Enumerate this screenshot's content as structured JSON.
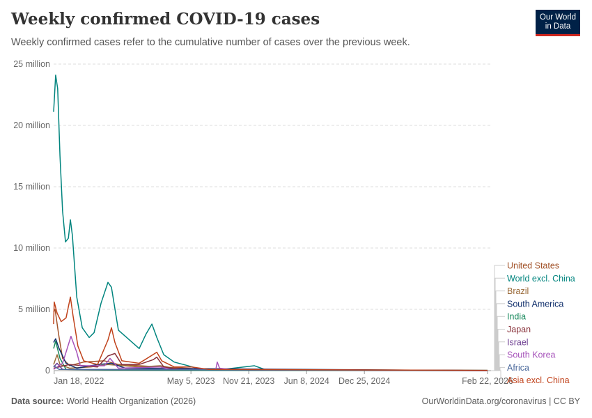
{
  "header": {
    "title": "Weekly confirmed COVID-19 cases",
    "subtitle": "Weekly confirmed cases refer to the cumulative number of cases over the previous week.",
    "logo": "Our World in Data"
  },
  "footer": {
    "source_label": "Data source:",
    "source": "World Health Organization (2026)",
    "link": "OurWorldinData.org/coronavirus | CC BY"
  },
  "chart_data": {
    "type": "line",
    "title": "Weekly confirmed COVID-19 cases",
    "x_unit": "days since Jan 11, 2022",
    "xlim": [
      0,
      1501
    ],
    "ylim": [
      0,
      25
    ],
    "y_unit": "million",
    "yticks": [
      {
        "v": 0,
        "label": "0"
      },
      {
        "v": 5,
        "label": "5 million"
      },
      {
        "v": 10,
        "label": "10 million"
      },
      {
        "v": 15,
        "label": "15 million"
      },
      {
        "v": 20,
        "label": "20 million"
      },
      {
        "v": 25,
        "label": "25 million"
      }
    ],
    "xticks": [
      {
        "v": 2,
        "label": "Jan 18, 2022"
      },
      {
        "v": 475,
        "label": "May 5, 2023"
      },
      {
        "v": 675,
        "label": "Nov 21, 2023"
      },
      {
        "v": 875,
        "label": "Jun 8, 2024"
      },
      {
        "v": 1075,
        "label": "Dec 25, 2024"
      },
      {
        "v": 1501,
        "label": "Feb 22, 2026"
      }
    ],
    "grid": true,
    "legend_placement": "right",
    "series": [
      {
        "name": "United States",
        "color": "#a2532a",
        "points": [
          [
            0,
            4.8
          ],
          [
            5,
            5.0
          ],
          [
            17,
            3.0
          ],
          [
            31,
            1.0
          ],
          [
            55,
            0.4
          ],
          [
            104,
            0.7
          ],
          [
            176,
            0.8
          ],
          [
            224,
            0.5
          ],
          [
            369,
            0.3
          ],
          [
            537,
            0.1
          ],
          [
            1501,
            0.02
          ]
        ]
      },
      {
        "name": "World excl. China",
        "color": "#00847e",
        "points": [
          [
            0,
            21.1
          ],
          [
            7,
            24.1
          ],
          [
            14,
            23
          ],
          [
            22,
            17.5
          ],
          [
            31,
            13
          ],
          [
            41,
            10.5
          ],
          [
            51,
            10.8
          ],
          [
            58,
            12.3
          ],
          [
            65,
            11
          ],
          [
            80,
            6
          ],
          [
            99,
            3.5
          ],
          [
            123,
            2.7
          ],
          [
            140,
            3.1
          ],
          [
            164,
            5.5
          ],
          [
            188,
            7.2
          ],
          [
            200,
            6.8
          ],
          [
            224,
            3.3
          ],
          [
            248,
            2.8
          ],
          [
            296,
            1.8
          ],
          [
            320,
            3.0
          ],
          [
            340,
            3.8
          ],
          [
            357,
            2.7
          ],
          [
            381,
            1.3
          ],
          [
            417,
            0.7
          ],
          [
            465,
            0.4
          ],
          [
            501,
            0.15
          ],
          [
            586,
            0.1
          ],
          [
            694,
            0.4
          ],
          [
            730,
            0.1
          ],
          [
            827,
            0.05
          ],
          [
            1501,
            0.02
          ]
        ]
      },
      {
        "name": "Brazil",
        "color": "#9a6a38",
        "points": [
          [
            0,
            0.5
          ],
          [
            12,
            1.3
          ],
          [
            22,
            0.5
          ],
          [
            55,
            0.2
          ],
          [
            128,
            0.3
          ],
          [
            188,
            0.5
          ],
          [
            296,
            0.3
          ],
          [
            369,
            0.4
          ],
          [
            441,
            0.1
          ],
          [
            1501,
            0.01
          ]
        ]
      },
      {
        "name": "South America",
        "color": "#0f2e6b",
        "points": [
          [
            0,
            2.3
          ],
          [
            7,
            2.6
          ],
          [
            19,
            1.8
          ],
          [
            43,
            0.6
          ],
          [
            80,
            0.2
          ],
          [
            152,
            0.5
          ],
          [
            200,
            0.6
          ],
          [
            248,
            0.2
          ],
          [
            1501,
            0
          ]
        ]
      },
      {
        "name": "India",
        "color": "#1a8a5e",
        "points": [
          [
            0,
            1.8
          ],
          [
            7,
            2.4
          ],
          [
            22,
            1.0
          ],
          [
            43,
            0.1
          ],
          [
            176,
            0.05
          ],
          [
            417,
            0.02
          ],
          [
            1501,
            0
          ]
        ]
      },
      {
        "name": "Japan",
        "color": "#883039",
        "points": [
          [
            0,
            0.2
          ],
          [
            55,
            0.5
          ],
          [
            152,
            0.3
          ],
          [
            188,
            1.2
          ],
          [
            212,
            1.4
          ],
          [
            236,
            0.5
          ],
          [
            296,
            0.5
          ],
          [
            345,
            0.9
          ],
          [
            357,
            1.1
          ],
          [
            381,
            0.3
          ],
          [
            441,
            0.1
          ],
          [
            1501,
            0.01
          ]
        ]
      },
      {
        "name": "Israel",
        "color": "#6d3e91",
        "points": [
          [
            0,
            0.3
          ],
          [
            12,
            0.6
          ],
          [
            31,
            0.1
          ],
          [
            1501,
            0
          ]
        ]
      },
      {
        "name": "South Korea",
        "color": "#a652ba",
        "points": [
          [
            0,
            0.1
          ],
          [
            31,
            0.6
          ],
          [
            60,
            2.8
          ],
          [
            80,
            1.5
          ],
          [
            92,
            0.4
          ],
          [
            176,
            0.4
          ],
          [
            195,
            1.0
          ],
          [
            224,
            0.2
          ],
          [
            369,
            0.3
          ],
          [
            405,
            0.1
          ],
          [
            561,
            0.1
          ],
          [
            566,
            0.7
          ],
          [
            574,
            0.2
          ],
          [
            610,
            0.1
          ],
          [
            1501,
            0
          ]
        ]
      },
      {
        "name": "Africa",
        "color": "#4c6a9c",
        "points": [
          [
            0,
            0.4
          ],
          [
            19,
            0.1
          ],
          [
            1501,
            0.01
          ]
        ]
      },
      {
        "name": "Asia excl. China",
        "color": "#c0421b",
        "points": [
          [
            0,
            3.8
          ],
          [
            2,
            5.6
          ],
          [
            12,
            4.7
          ],
          [
            26,
            4.0
          ],
          [
            43,
            4.3
          ],
          [
            58,
            6.0
          ],
          [
            67,
            4.5
          ],
          [
            84,
            2.0
          ],
          [
            104,
            0.8
          ],
          [
            152,
            0.5
          ],
          [
            188,
            2.5
          ],
          [
            200,
            3.5
          ],
          [
            212,
            2.3
          ],
          [
            236,
            0.8
          ],
          [
            296,
            0.6
          ],
          [
            357,
            1.5
          ],
          [
            374,
            0.8
          ],
          [
            417,
            0.3
          ],
          [
            477,
            0.3
          ],
          [
            537,
            0.1
          ],
          [
            1501,
            0.02
          ]
        ]
      }
    ]
  }
}
